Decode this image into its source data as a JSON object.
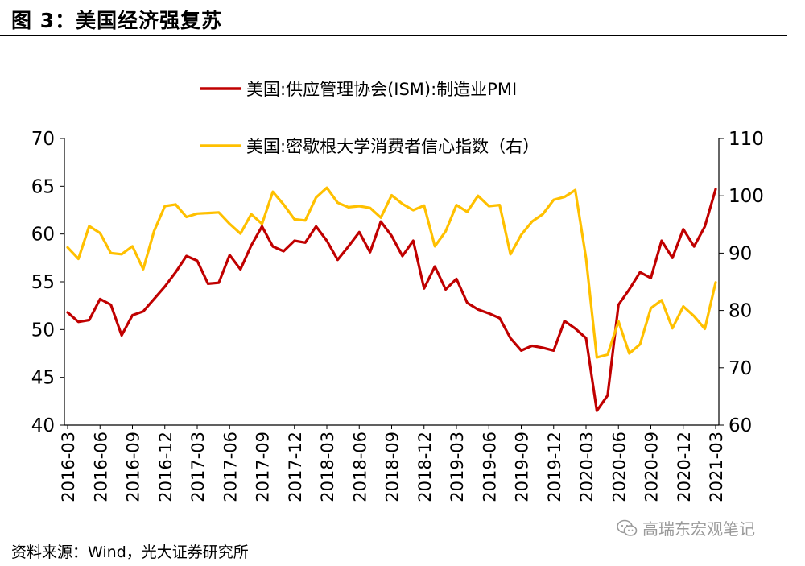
{
  "figure_title": "图 3：美国经济强复苏",
  "source": "资料来源：Wind，光大证券研究所",
  "watermark": "高瑞东宏观笔记",
  "colors": {
    "pmi": "#C00000",
    "confidence": "#FFC000",
    "axis": "#000000",
    "rule": "#000000"
  },
  "chart_data": {
    "type": "line",
    "title": "",
    "legend_position": "top-center",
    "grid": false,
    "x": [
      "2016-03",
      "2016-04",
      "2016-05",
      "2016-06",
      "2016-07",
      "2016-08",
      "2016-09",
      "2016-10",
      "2016-11",
      "2016-12",
      "2017-01",
      "2017-02",
      "2017-03",
      "2017-04",
      "2017-05",
      "2017-06",
      "2017-07",
      "2017-08",
      "2017-09",
      "2017-10",
      "2017-11",
      "2017-12",
      "2018-01",
      "2018-02",
      "2018-03",
      "2018-04",
      "2018-05",
      "2018-06",
      "2018-07",
      "2018-08",
      "2018-09",
      "2018-10",
      "2018-11",
      "2018-12",
      "2019-01",
      "2019-02",
      "2019-03",
      "2019-04",
      "2019-05",
      "2019-06",
      "2019-07",
      "2019-08",
      "2019-09",
      "2019-10",
      "2019-11",
      "2019-12",
      "2020-01",
      "2020-02",
      "2020-03",
      "2020-04",
      "2020-05",
      "2020-06",
      "2020-07",
      "2020-08",
      "2020-09",
      "2020-10",
      "2020-11",
      "2020-12",
      "2021-01",
      "2021-02",
      "2021-03"
    ],
    "xticks": [
      "2016-03",
      "2016-06",
      "2016-09",
      "2016-12",
      "2017-03",
      "2017-06",
      "2017-09",
      "2017-12",
      "2018-03",
      "2018-06",
      "2018-09",
      "2018-12",
      "2019-03",
      "2019-06",
      "2019-09",
      "2019-12",
      "2020-03",
      "2020-06",
      "2020-09",
      "2020-12",
      "2021-03"
    ],
    "y_left": {
      "min": 40,
      "max": 70,
      "ticks": [
        40,
        45,
        50,
        55,
        60,
        65,
        70
      ]
    },
    "y_right": {
      "min": 60,
      "max": 110,
      "ticks": [
        60,
        70,
        80,
        90,
        100,
        110
      ]
    },
    "series": [
      {
        "name": "美国:供应管理协会(ISM):制造业PMI",
        "axis": "left",
        "values": [
          51.8,
          50.8,
          51.0,
          53.2,
          52.6,
          49.4,
          51.5,
          51.9,
          53.2,
          54.5,
          56.0,
          57.7,
          57.2,
          54.8,
          54.9,
          57.8,
          56.3,
          58.8,
          60.8,
          58.7,
          58.2,
          59.3,
          59.1,
          60.8,
          59.3,
          57.3,
          58.7,
          60.2,
          58.1,
          61.3,
          59.8,
          57.7,
          59.3,
          54.3,
          56.6,
          54.2,
          55.3,
          52.8,
          52.1,
          51.7,
          51.2,
          49.1,
          47.8,
          48.3,
          48.1,
          47.8,
          50.9,
          50.1,
          49.1,
          41.5,
          43.1,
          52.6,
          54.2,
          56.0,
          55.4,
          59.3,
          57.5,
          60.5,
          58.7,
          60.8,
          64.7
        ]
      },
      {
        "name": "美国:密歇根大学消费者信心指数（右）",
        "axis": "right",
        "values": [
          91.0,
          89.0,
          94.7,
          93.5,
          90.0,
          89.8,
          91.2,
          87.2,
          93.8,
          98.2,
          98.5,
          96.3,
          96.9,
          97.0,
          97.1,
          95.1,
          93.4,
          96.8,
          95.1,
          100.7,
          98.5,
          95.9,
          95.7,
          99.7,
          101.4,
          98.8,
          98.0,
          98.2,
          97.9,
          96.2,
          100.1,
          98.6,
          97.5,
          98.3,
          91.2,
          93.8,
          98.4,
          97.2,
          100.0,
          98.2,
          98.4,
          89.8,
          93.2,
          95.5,
          96.8,
          99.3,
          99.8,
          101.0,
          89.1,
          71.8,
          72.3,
          78.1,
          72.5,
          74.1,
          80.4,
          81.8,
          76.9,
          80.7,
          79.0,
          76.8,
          84.9
        ]
      }
    ]
  }
}
